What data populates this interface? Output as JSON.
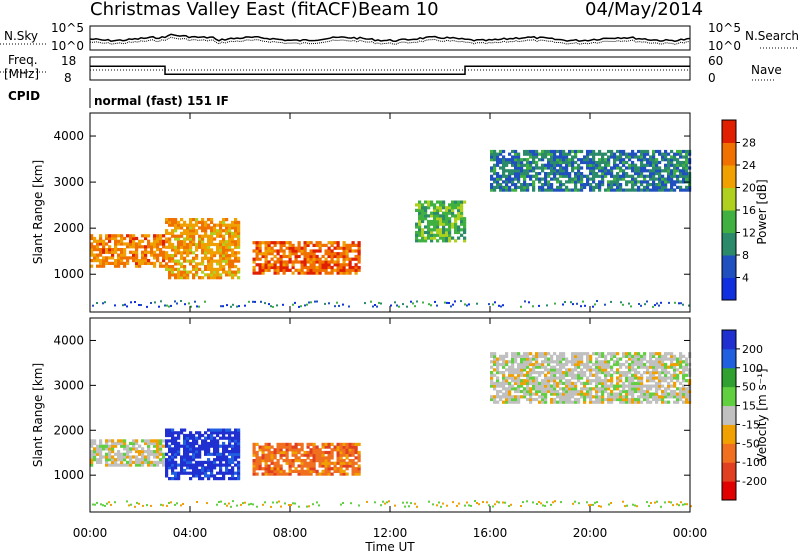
{
  "header": {
    "title": "Christmas Valley East (fitACF)",
    "beam": "Beam 10",
    "date": "04/May/2014"
  },
  "panels": {
    "nsky": {
      "label": "N.Sky",
      "top_tick": "10^5",
      "bottom_tick": "10^0",
      "right_label": "N.Search",
      "right_top": "10^5",
      "right_bottom": "10^0"
    },
    "freq": {
      "label_line1": "Freq.",
      "label_line2": "[MHz]",
      "top_tick": "18",
      "bottom_tick": "8",
      "right_label": "Nave",
      "right_top": "60",
      "right_bottom": "0"
    },
    "cpid": {
      "label": "CPID",
      "value": "normal (fast) 151 IF"
    },
    "power": {
      "ylabel": "Slant Range [km]",
      "yticks": [
        "1000",
        "2000",
        "3000",
        "4000"
      ],
      "colorbar_label": "Power [dB]",
      "colorbar_ticks": [
        "4",
        "8",
        "12",
        "16",
        "20",
        "24",
        "28"
      ]
    },
    "velocity": {
      "ylabel": "Slant Range [km]",
      "yticks": [
        "1000",
        "2000",
        "3000",
        "4000"
      ],
      "colorbar_label": "Velocity [m s⁻¹]",
      "colorbar_ticks": [
        "200",
        "100",
        "50",
        "15",
        "-15",
        "-50",
        "-100",
        "-200"
      ]
    }
  },
  "xaxis": {
    "label": "Time UT",
    "ticks": [
      "00:00",
      "04:00",
      "08:00",
      "12:00",
      "16:00",
      "20:00",
      "00:00"
    ]
  },
  "colors": {
    "power_scale": [
      "#1030e0",
      "#2050c0",
      "#2a8a6a",
      "#40b040",
      "#b0d020",
      "#f0a000",
      "#f07000",
      "#e02000"
    ],
    "velocity_scale": [
      "#2030d0",
      "#2060e0",
      "#30a030",
      "#60d040",
      "#c0c0c0",
      "#f0a000",
      "#f07020",
      "#e04020",
      "#e00000"
    ]
  },
  "chart_data": {
    "type": "heatmap",
    "x_range_hours": [
      0,
      24
    ],
    "y_range_km": [
      180,
      4500
    ],
    "freq_mhz_trace": [
      {
        "t": 0,
        "f": 14
      },
      {
        "t": 3,
        "f": 14
      },
      {
        "t": 3,
        "f": 10.5
      },
      {
        "t": 15,
        "f": 10.5
      },
      {
        "t": 15,
        "f": 14
      },
      {
        "t": 24,
        "f": 14
      }
    ],
    "power_regions": [
      {
        "t0": 0,
        "t1": 3,
        "r0": 1150,
        "r1": 1850,
        "db": 26
      },
      {
        "t0": 3,
        "t1": 6,
        "r0": 900,
        "r1": 2200,
        "db": 24
      },
      {
        "t0": 6.5,
        "t1": 10.8,
        "r0": 1000,
        "r1": 1700,
        "db": 28
      },
      {
        "t0": 13,
        "t1": 15,
        "r0": 1700,
        "r1": 2600,
        "db": 14
      },
      {
        "t0": 16,
        "t1": 24,
        "r0": 2800,
        "r1": 3700,
        "db": 8
      }
    ],
    "velocity_regions": [
      {
        "t0": 0,
        "t1": 3,
        "r0": 1200,
        "r1": 1800,
        "v": 0
      },
      {
        "t0": 3,
        "t1": 6,
        "r0": 900,
        "r1": 2000,
        "v": 200
      },
      {
        "t0": 6.5,
        "t1": 10.8,
        "r0": 1000,
        "r1": 1700,
        "v": -60
      },
      {
        "t0": 16,
        "t1": 24,
        "r0": 2600,
        "r1": 3700,
        "v": 0
      }
    ]
  }
}
